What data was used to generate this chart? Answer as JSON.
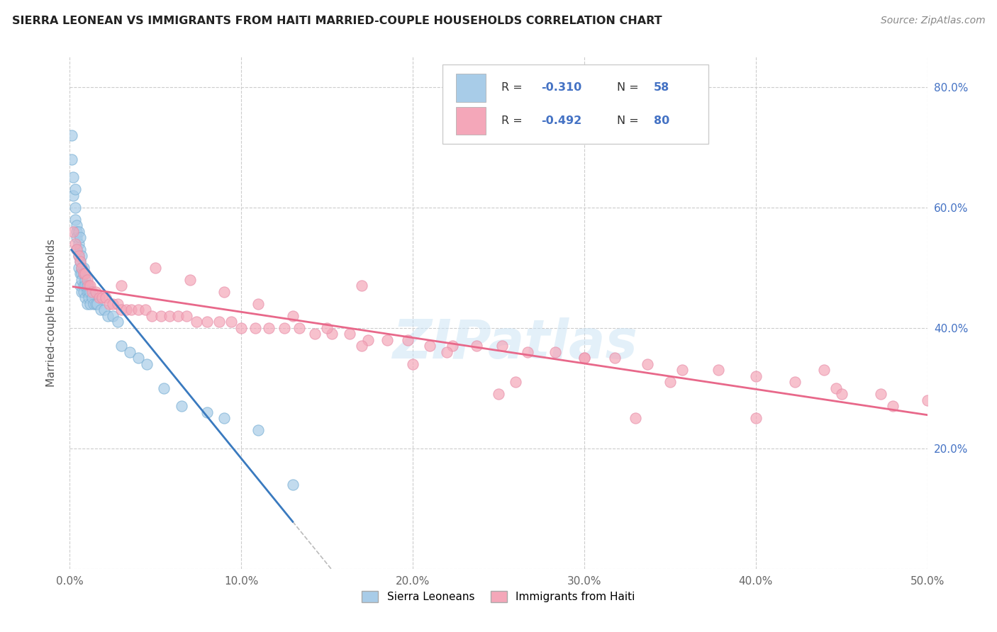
{
  "title": "SIERRA LEONEAN VS IMMIGRANTS FROM HAITI MARRIED-COUPLE HOUSEHOLDS CORRELATION CHART",
  "source": "Source: ZipAtlas.com",
  "ylabel": "Married-couple Households",
  "legend_label1": "Sierra Leoneans",
  "legend_label2": "Immigrants from Haiti",
  "color_blue": "#a8cce8",
  "color_pink": "#f4a7b9",
  "color_blue_line": "#3a7abf",
  "color_pink_line": "#e8688a",
  "color_blue_text": "#4472c4",
  "color_gray_dash": "#bbbbbb",
  "R1": -0.31,
  "N1": 58,
  "R2": -0.492,
  "N2": 80,
  "blue_x": [
    0.001,
    0.001,
    0.002,
    0.002,
    0.003,
    0.003,
    0.003,
    0.004,
    0.004,
    0.004,
    0.004,
    0.005,
    0.005,
    0.005,
    0.005,
    0.006,
    0.006,
    0.006,
    0.006,
    0.006,
    0.007,
    0.007,
    0.007,
    0.007,
    0.007,
    0.008,
    0.008,
    0.008,
    0.008,
    0.009,
    0.009,
    0.009,
    0.01,
    0.01,
    0.01,
    0.011,
    0.011,
    0.012,
    0.012,
    0.013,
    0.014,
    0.015,
    0.016,
    0.018,
    0.02,
    0.022,
    0.025,
    0.028,
    0.03,
    0.035,
    0.04,
    0.045,
    0.055,
    0.065,
    0.08,
    0.09,
    0.11,
    0.13
  ],
  "blue_y": [
    0.72,
    0.68,
    0.65,
    0.62,
    0.63,
    0.6,
    0.58,
    0.57,
    0.56,
    0.55,
    0.53,
    0.56,
    0.54,
    0.52,
    0.5,
    0.55,
    0.53,
    0.51,
    0.49,
    0.47,
    0.52,
    0.5,
    0.49,
    0.48,
    0.46,
    0.5,
    0.49,
    0.47,
    0.46,
    0.48,
    0.47,
    0.45,
    0.47,
    0.46,
    0.44,
    0.46,
    0.45,
    0.46,
    0.44,
    0.45,
    0.44,
    0.44,
    0.44,
    0.43,
    0.43,
    0.42,
    0.42,
    0.41,
    0.37,
    0.36,
    0.35,
    0.34,
    0.3,
    0.27,
    0.26,
    0.25,
    0.23,
    0.14
  ],
  "pink_x": [
    0.002,
    0.003,
    0.004,
    0.005,
    0.006,
    0.007,
    0.008,
    0.009,
    0.01,
    0.011,
    0.012,
    0.013,
    0.015,
    0.017,
    0.019,
    0.021,
    0.023,
    0.025,
    0.028,
    0.03,
    0.033,
    0.036,
    0.04,
    0.044,
    0.048,
    0.053,
    0.058,
    0.063,
    0.068,
    0.074,
    0.08,
    0.087,
    0.094,
    0.1,
    0.108,
    0.116,
    0.125,
    0.134,
    0.143,
    0.153,
    0.163,
    0.174,
    0.185,
    0.197,
    0.21,
    0.223,
    0.237,
    0.252,
    0.267,
    0.283,
    0.3,
    0.318,
    0.337,
    0.357,
    0.378,
    0.4,
    0.423,
    0.447,
    0.473,
    0.5,
    0.03,
    0.05,
    0.07,
    0.09,
    0.11,
    0.13,
    0.15,
    0.17,
    0.2,
    0.25,
    0.3,
    0.35,
    0.4,
    0.44,
    0.48,
    0.17,
    0.22,
    0.26,
    0.33,
    0.45
  ],
  "pink_y": [
    0.56,
    0.54,
    0.53,
    0.52,
    0.51,
    0.5,
    0.49,
    0.49,
    0.48,
    0.47,
    0.47,
    0.46,
    0.46,
    0.45,
    0.45,
    0.45,
    0.44,
    0.44,
    0.44,
    0.43,
    0.43,
    0.43,
    0.43,
    0.43,
    0.42,
    0.42,
    0.42,
    0.42,
    0.42,
    0.41,
    0.41,
    0.41,
    0.41,
    0.4,
    0.4,
    0.4,
    0.4,
    0.4,
    0.39,
    0.39,
    0.39,
    0.38,
    0.38,
    0.38,
    0.37,
    0.37,
    0.37,
    0.37,
    0.36,
    0.36,
    0.35,
    0.35,
    0.34,
    0.33,
    0.33,
    0.32,
    0.31,
    0.3,
    0.29,
    0.28,
    0.47,
    0.5,
    0.48,
    0.46,
    0.44,
    0.42,
    0.4,
    0.37,
    0.34,
    0.29,
    0.35,
    0.31,
    0.25,
    0.33,
    0.27,
    0.47,
    0.36,
    0.31,
    0.25,
    0.29
  ],
  "xlim": [
    0.0,
    0.5
  ],
  "ylim": [
    0.0,
    0.85
  ],
  "xticks": [
    0.0,
    0.1,
    0.2,
    0.3,
    0.4,
    0.5
  ],
  "xticklabels": [
    "0.0%",
    "10.0%",
    "20.0%",
    "30.0%",
    "40.0%",
    "50.0%"
  ],
  "yticks_right": [
    0.2,
    0.4,
    0.6,
    0.8
  ],
  "yticklabels_right": [
    "20.0%",
    "40.0%",
    "60.0%",
    "80.0%"
  ],
  "watermark": "ZIPatlas",
  "background_color": "#ffffff"
}
